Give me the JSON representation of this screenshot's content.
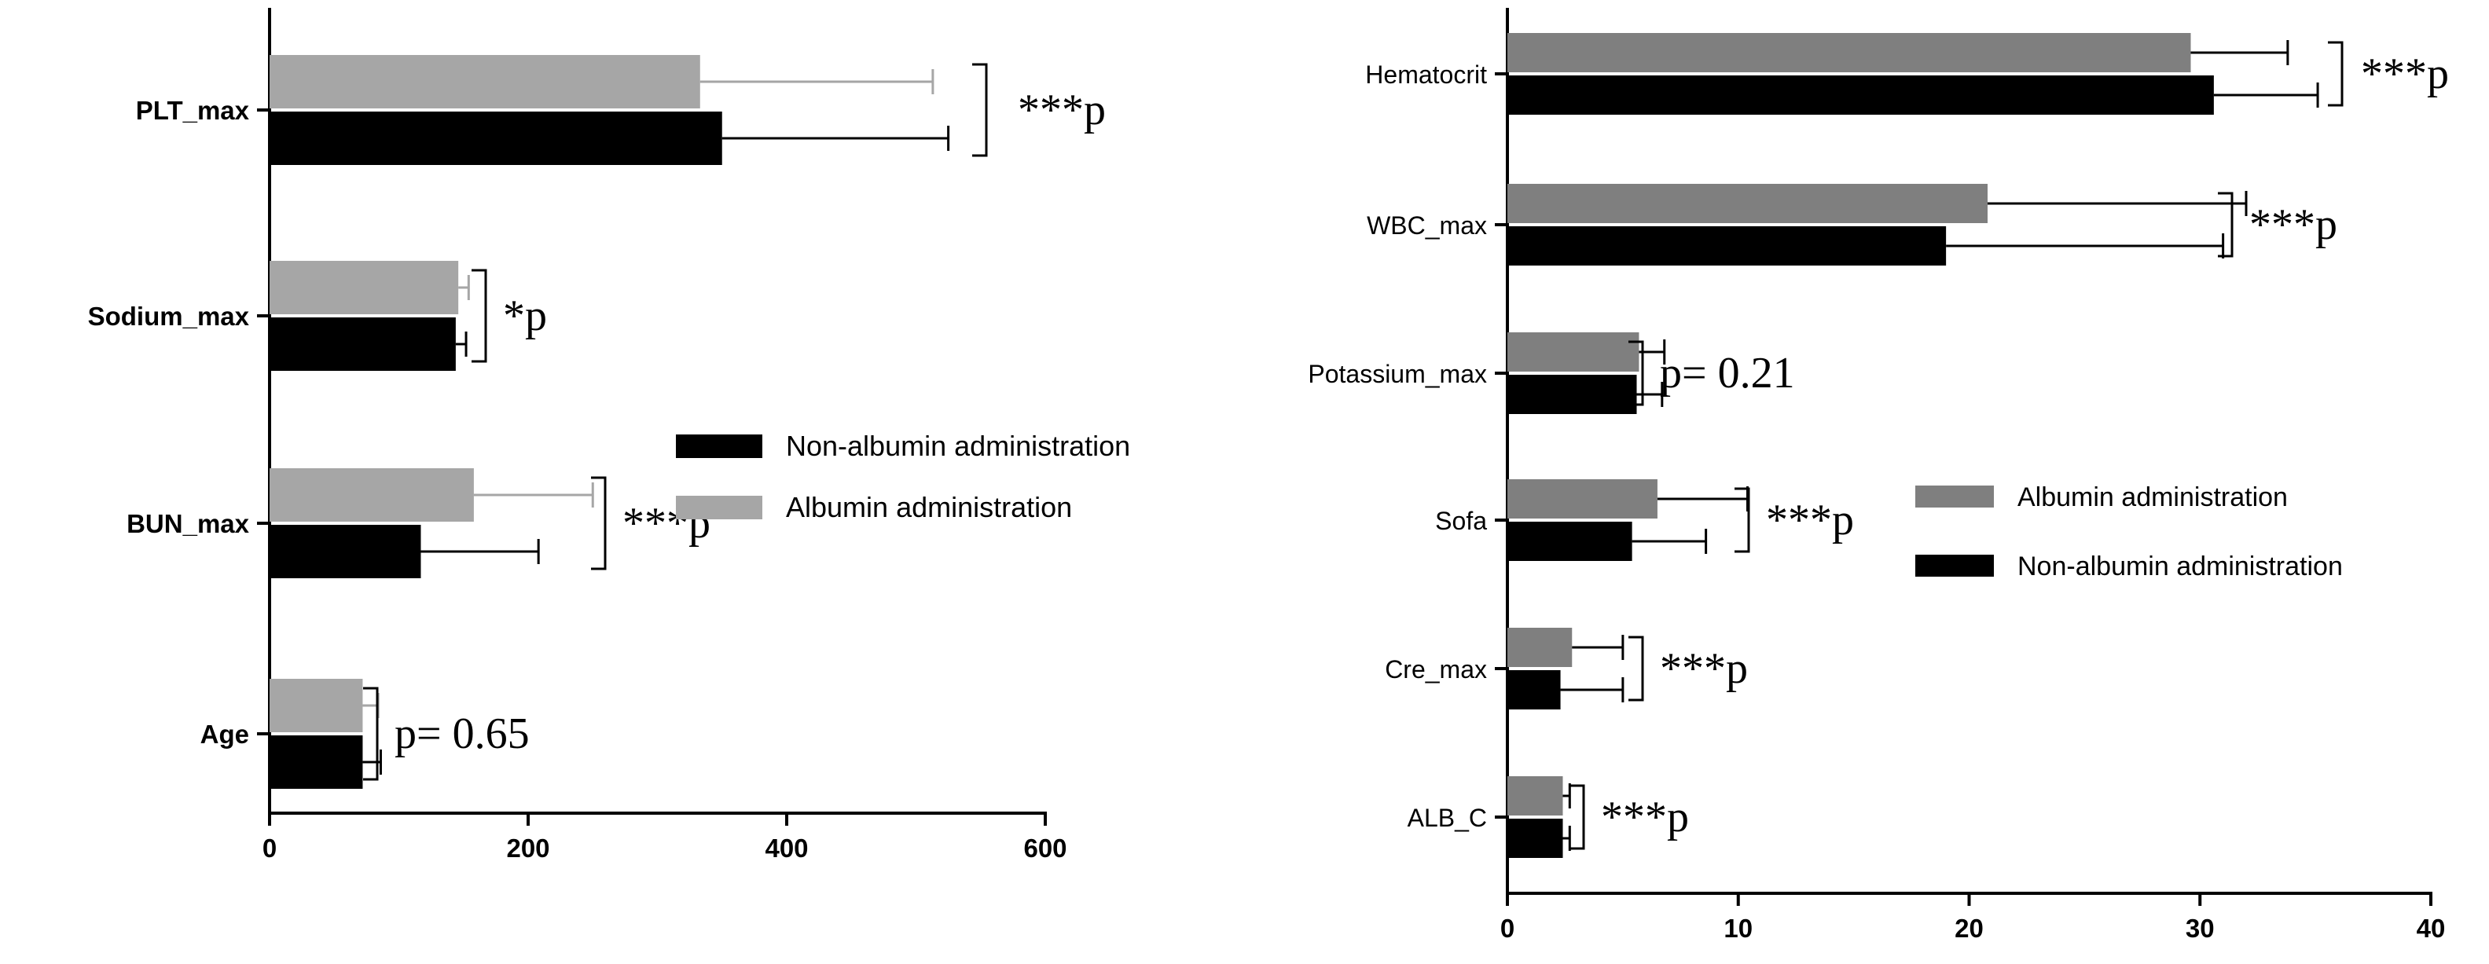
{
  "chart_data": [
    {
      "type": "bar",
      "orientation": "horizontal",
      "title": "",
      "xlabel": "",
      "ylabel": "",
      "xlim": [
        0,
        600
      ],
      "x_ticks": [
        "0",
        "200",
        "400",
        "600"
      ],
      "categories": [
        "PLT_max",
        "Sodium_max",
        "BUN_max",
        "Age"
      ],
      "series": [
        {
          "name": "Albumin administration",
          "color": "#a6a6a6",
          "values": [
            333,
            146,
            158,
            72
          ],
          "errors": [
            180,
            8,
            92,
            12
          ]
        },
        {
          "name": "Non-albumin administration",
          "color": "#000000",
          "values": [
            350,
            144,
            117,
            72
          ],
          "errors": [
            175,
            8,
            91,
            14
          ]
        }
      ],
      "annotations": [
        "***p",
        "*p",
        "***p",
        "p= 0.65"
      ],
      "legend_order": [
        "Non-albumin administration",
        "Albumin administration"
      ],
      "legend_position": "right"
    },
    {
      "type": "bar",
      "orientation": "horizontal",
      "title": "",
      "xlabel": "",
      "ylabel": "",
      "xlim": [
        0,
        40
      ],
      "x_ticks": [
        "0",
        "10",
        "20",
        "30",
        "40"
      ],
      "categories": [
        "Hematocrit",
        "WBC_max",
        "Potassium_max",
        "Sofa",
        "Cre_max",
        "ALB_C"
      ],
      "series": [
        {
          "name": "Albumin administration",
          "color": "#7f7f7f",
          "values": [
            29.6,
            20.8,
            5.7,
            6.5,
            2.8,
            2.4
          ],
          "errors": [
            4.2,
            11.2,
            1.1,
            3.9,
            2.2,
            0.3
          ]
        },
        {
          "name": "Non-albumin administration",
          "color": "#000000",
          "values": [
            30.6,
            19.0,
            5.6,
            5.4,
            2.3,
            2.4
          ],
          "errors": [
            4.5,
            12.0,
            1.1,
            3.2,
            2.7,
            0.3
          ]
        }
      ],
      "annotations": [
        "***p",
        "***p",
        "p= 0.21",
        "***p",
        "***p",
        "***p"
      ],
      "legend_order": [
        "Albumin administration",
        "Non-albumin administration"
      ],
      "legend_position": "right"
    }
  ]
}
